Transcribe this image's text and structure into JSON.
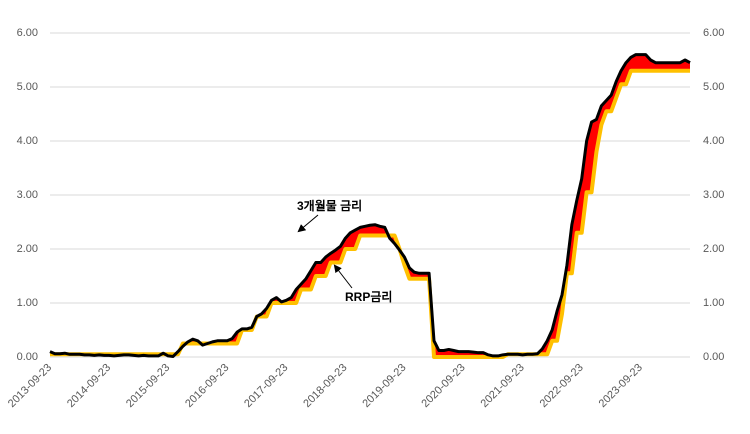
{
  "chart_data": {
    "type": "line",
    "categories": [
      "2013-09-23",
      null,
      null,
      null,
      null,
      null,
      null,
      null,
      null,
      null,
      null,
      null,
      "2014-09-23",
      null,
      null,
      null,
      null,
      null,
      null,
      null,
      null,
      null,
      null,
      null,
      "2015-09-23",
      null,
      null,
      null,
      null,
      null,
      null,
      null,
      null,
      null,
      null,
      null,
      "2016-09-23",
      null,
      null,
      null,
      null,
      null,
      null,
      null,
      null,
      null,
      null,
      null,
      "2017-09-23",
      null,
      null,
      null,
      null,
      null,
      null,
      null,
      null,
      null,
      null,
      null,
      "2018-09-23",
      null,
      null,
      null,
      null,
      null,
      null,
      null,
      null,
      null,
      null,
      null,
      "2019-09-23",
      null,
      null,
      null,
      null,
      null,
      null,
      null,
      null,
      null,
      null,
      null,
      "2020-09-23",
      null,
      null,
      null,
      null,
      null,
      null,
      null,
      null,
      null,
      null,
      null,
      "2021-09-23",
      null,
      null,
      null,
      null,
      null,
      null,
      null,
      null,
      null,
      null,
      null,
      "2022-09-23",
      null,
      null,
      null,
      null,
      null,
      null,
      null,
      null,
      null,
      null,
      null,
      "2023-09-23",
      null,
      null,
      null,
      null,
      null,
      null,
      null,
      null,
      null,
      null
    ],
    "series": [
      {
        "name": "3개월물 금리",
        "color": "#000000",
        "values": [
          0.1,
          0.06,
          0.06,
          0.07,
          0.05,
          0.05,
          0.05,
          0.04,
          0.04,
          0.03,
          0.04,
          0.03,
          0.03,
          0.02,
          0.03,
          0.04,
          0.04,
          0.03,
          0.02,
          0.03,
          0.02,
          0.02,
          0.02,
          0.07,
          0.02,
          0.01,
          0.1,
          0.2,
          0.28,
          0.33,
          0.3,
          0.22,
          0.25,
          0.28,
          0.3,
          0.3,
          0.3,
          0.34,
          0.46,
          0.52,
          0.52,
          0.55,
          0.75,
          0.8,
          0.9,
          1.05,
          1.1,
          1.02,
          1.05,
          1.1,
          1.25,
          1.35,
          1.45,
          1.6,
          1.75,
          1.75,
          1.85,
          1.92,
          1.98,
          2.05,
          2.2,
          2.3,
          2.35,
          2.4,
          2.42,
          2.44,
          2.45,
          2.42,
          2.4,
          2.2,
          2.1,
          1.98,
          1.85,
          1.65,
          1.57,
          1.55,
          1.55,
          1.55,
          0.3,
          0.12,
          0.12,
          0.14,
          0.12,
          0.1,
          0.1,
          0.1,
          0.09,
          0.08,
          0.08,
          0.04,
          0.02,
          0.02,
          0.04,
          0.05,
          0.05,
          0.05,
          0.04,
          0.05,
          0.05,
          0.06,
          0.15,
          0.3,
          0.5,
          0.85,
          1.15,
          1.7,
          2.45,
          2.9,
          3.3,
          4.0,
          4.35,
          4.4,
          4.65,
          4.75,
          4.85,
          5.1,
          5.3,
          5.45,
          5.55,
          5.6,
          5.6,
          5.6,
          5.5,
          5.45,
          5.45,
          5.45,
          5.45,
          5.45,
          5.45,
          5.5,
          5.45
        ]
      },
      {
        "name": "RRP금리",
        "color": "#FFC000",
        "values": [
          0.05,
          0.05,
          0.05,
          0.05,
          0.05,
          0.05,
          0.05,
          0.05,
          0.05,
          0.05,
          0.05,
          0.05,
          0.05,
          0.05,
          0.05,
          0.05,
          0.05,
          0.05,
          0.05,
          0.05,
          0.05,
          0.05,
          0.05,
          0.05,
          0.05,
          0.05,
          0.05,
          0.25,
          0.25,
          0.25,
          0.25,
          0.25,
          0.25,
          0.25,
          0.25,
          0.25,
          0.25,
          0.25,
          0.25,
          0.5,
          0.5,
          0.5,
          0.75,
          0.75,
          0.75,
          1.0,
          1.0,
          1.0,
          1.0,
          1.0,
          1.0,
          1.25,
          1.25,
          1.25,
          1.5,
          1.5,
          1.5,
          1.75,
          1.75,
          1.75,
          2.0,
          2.0,
          2.0,
          2.25,
          2.25,
          2.25,
          2.25,
          2.25,
          2.25,
          2.25,
          2.25,
          2.0,
          1.7,
          1.45,
          1.45,
          1.45,
          1.45,
          1.45,
          0.0,
          0.0,
          0.0,
          0.0,
          0.0,
          0.0,
          0.0,
          0.0,
          0.0,
          0.0,
          0.0,
          0.0,
          0.0,
          0.0,
          0.0,
          0.05,
          0.05,
          0.05,
          0.05,
          0.05,
          0.05,
          0.05,
          0.05,
          0.05,
          0.3,
          0.3,
          0.8,
          1.55,
          1.55,
          2.3,
          2.3,
          3.05,
          3.05,
          3.8,
          4.3,
          4.55,
          4.55,
          4.8,
          5.05,
          5.05,
          5.3,
          5.3,
          5.3,
          5.3,
          5.3,
          5.3,
          5.3,
          5.3,
          5.3,
          5.3,
          5.3,
          5.3,
          5.3
        ]
      }
    ],
    "fill_color": "#FF0000",
    "ylim": [
      0,
      6
    ],
    "yticks": [
      {
        "value": 0,
        "label": "0.00"
      },
      {
        "value": 1,
        "label": "1.00"
      },
      {
        "value": 2,
        "label": "2.00"
      },
      {
        "value": 3,
        "label": "3.00"
      },
      {
        "value": 4,
        "label": "4.00"
      },
      {
        "value": 5,
        "label": "5.00"
      },
      {
        "value": 6,
        "label": "6.00"
      }
    ],
    "grid": true
  }
}
